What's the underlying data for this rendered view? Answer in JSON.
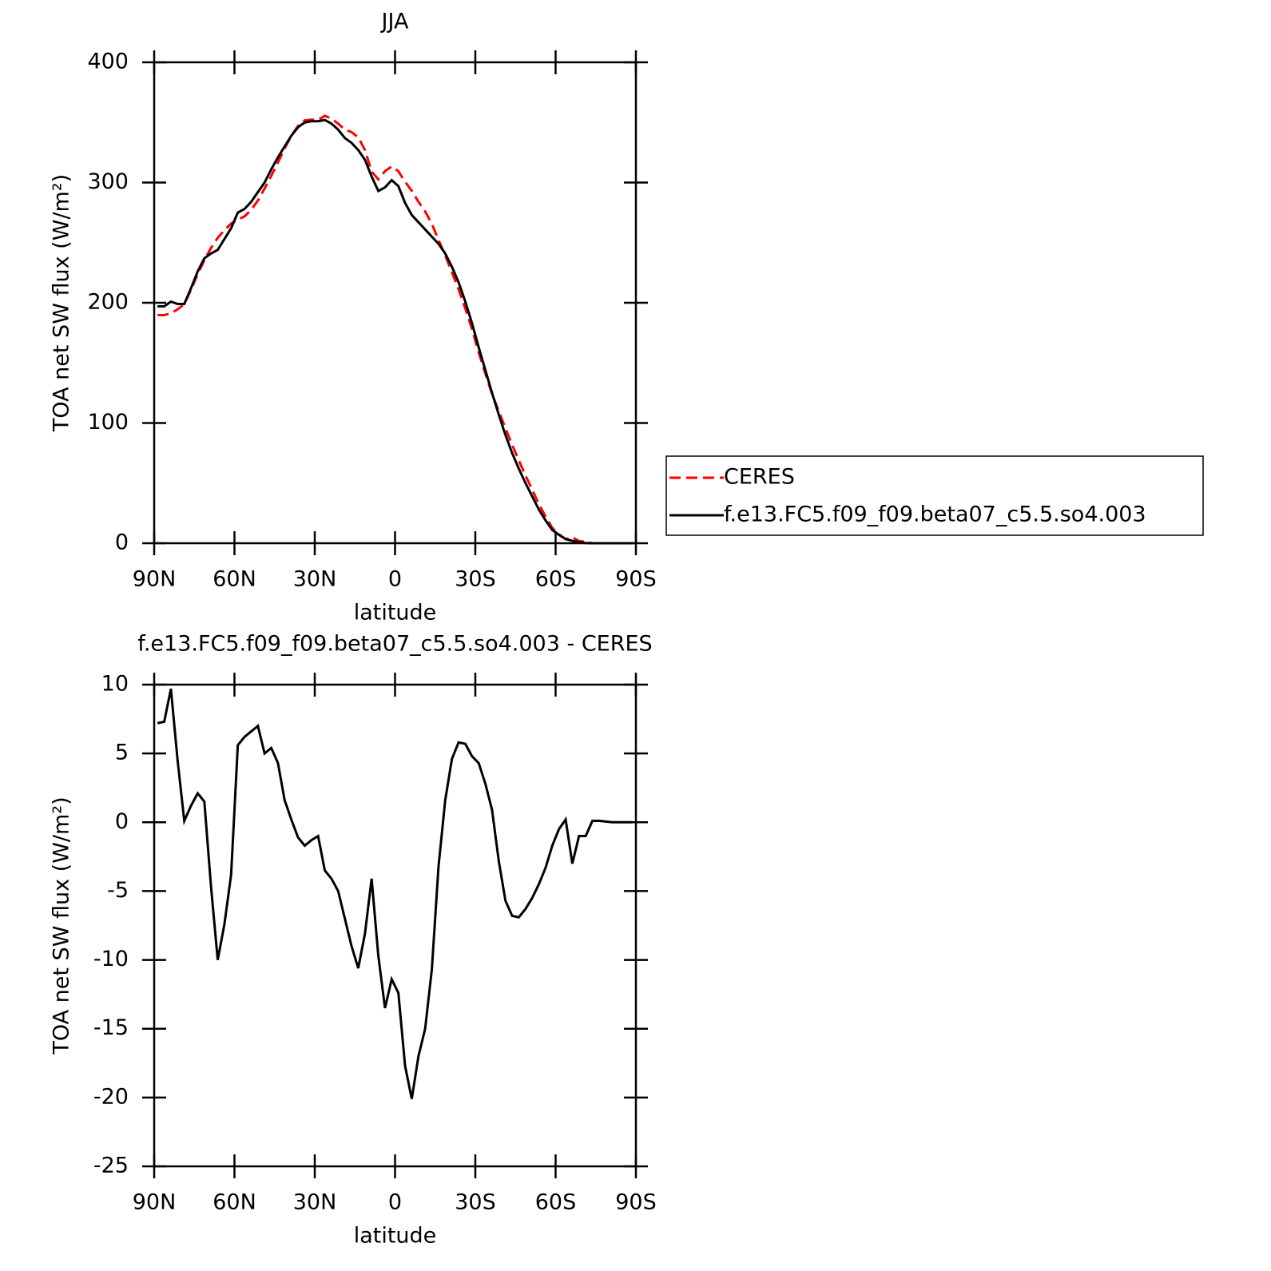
{
  "chart_data": [
    {
      "type": "line",
      "title": "JJA",
      "xlabel": "latitude",
      "ylabel": "TOA net SW flux (W/m²)",
      "x": [
        88.75,
        86.25,
        83.75,
        81.25,
        78.75,
        76.25,
        73.75,
        71.25,
        68.75,
        66.25,
        63.75,
        61.25,
        58.75,
        56.25,
        53.75,
        51.25,
        48.75,
        46.25,
        43.75,
        41.25,
        38.75,
        36.25,
        33.75,
        31.25,
        28.75,
        26.25,
        23.75,
        21.25,
        18.75,
        16.25,
        13.75,
        11.25,
        8.75,
        6.25,
        3.75,
        1.25,
        -1.25,
        -3.75,
        -6.25,
        -8.75,
        -11.25,
        -13.75,
        -16.25,
        -18.75,
        -21.25,
        -23.75,
        -26.25,
        -28.75,
        -31.25,
        -33.75,
        -36.25,
        -38.75,
        -41.25,
        -43.75,
        -46.25,
        -48.75,
        -51.25,
        -53.75,
        -56.25,
        -58.75,
        -61.25,
        -63.75,
        -66.25,
        -68.75,
        -71.25,
        -73.75,
        -76.25,
        -78.75,
        -81.25,
        -83.75,
        -86.25,
        -88.75
      ],
      "xlim": [
        90,
        -90
      ],
      "xticks": [
        {
          "value": 90,
          "label": "90N"
        },
        {
          "value": 60,
          "label": "60N"
        },
        {
          "value": 30,
          "label": "30N"
        },
        0,
        {
          "value": -30,
          "label": "30S"
        },
        {
          "value": -60,
          "label": "60S"
        },
        {
          "value": -90,
          "label": "90S"
        }
      ],
      "ylim": [
        0,
        400
      ],
      "yticks": [
        0,
        100,
        200,
        300,
        400
      ],
      "series": [
        {
          "name": "CERES",
          "color": "#ff0000",
          "dash": true,
          "values": [
            189.8,
            189.7,
            191.3,
            194.5,
            198.9,
            210.8,
            223.9,
            235.5,
            245.7,
            254,
            260.4,
            265.8,
            269.4,
            271.8,
            277.4,
            285,
            295,
            305.6,
            316.7,
            328.4,
            338.8,
            347.1,
            351.7,
            352.3,
            352,
            355.5,
            353.1,
            349,
            344,
            342,
            337.6,
            327.1,
            309.1,
            302.7,
            309.5,
            313.4,
            309.4,
            300.7,
            293.1,
            284,
            276,
            265.7,
            252.2,
            239.4,
            225.4,
            211.2,
            195.3,
            178.2,
            158.7,
            141.2,
            124.1,
            109.8,
            95.7,
            81.8,
            68.9,
            56.3,
            44.5,
            32.5,
            22.3,
            12.7,
            7.5,
            3.3,
            5,
            1.8,
            1.2,
            0,
            0,
            0,
            0,
            0,
            0,
            0
          ]
        },
        {
          "name": "f.e13.FC5.f09_f09.beta07_c5.5.so4.003",
          "color": "#000000",
          "dash": false,
          "values": [
            197,
            197,
            201,
            199,
            199,
            212,
            226,
            237,
            241,
            244,
            253,
            262,
            275,
            278,
            284,
            292,
            300,
            311,
            321,
            330,
            339,
            346,
            350,
            351,
            351,
            352,
            349,
            344,
            337,
            333,
            327,
            319,
            305,
            293,
            296,
            302,
            297,
            283,
            273,
            267,
            261,
            255,
            249,
            241,
            230,
            217,
            201,
            183,
            163,
            144,
            125,
            107,
            90,
            75,
            62,
            50,
            39,
            28,
            19,
            11,
            7,
            3.5,
            2,
            0.8,
            0.2,
            0,
            0,
            0,
            0,
            0,
            0,
            0
          ]
        }
      ]
    },
    {
      "type": "line",
      "title": "f.e13.FC5.f09_f09.beta07_c5.5.so4.003 - CERES",
      "xlabel": "latitude",
      "ylabel": "TOA net SW flux (W/m²)",
      "x": [
        88.75,
        86.25,
        83.75,
        81.25,
        78.75,
        76.25,
        73.75,
        71.25,
        68.75,
        66.25,
        63.75,
        61.25,
        58.75,
        56.25,
        53.75,
        51.25,
        48.75,
        46.25,
        43.75,
        41.25,
        38.75,
        36.25,
        33.75,
        31.25,
        28.75,
        26.25,
        23.75,
        21.25,
        18.75,
        16.25,
        13.75,
        11.25,
        8.75,
        6.25,
        3.75,
        1.25,
        -1.25,
        -3.75,
        -6.25,
        -8.75,
        -11.25,
        -13.75,
        -16.25,
        -18.75,
        -21.25,
        -23.75,
        -26.25,
        -28.75,
        -31.25,
        -33.75,
        -36.25,
        -38.75,
        -41.25,
        -43.75,
        -46.25,
        -48.75,
        -51.25,
        -53.75,
        -56.25,
        -58.75,
        -61.25,
        -63.75,
        -66.25,
        -68.75,
        -71.25,
        -73.75,
        -76.25,
        -78.75,
        -81.25,
        -83.75,
        -86.25,
        -88.75
      ],
      "xlim": [
        90,
        -90
      ],
      "xticks": [
        {
          "value": 90,
          "label": "90N"
        },
        {
          "value": 60,
          "label": "60N"
        },
        {
          "value": 30,
          "label": "30N"
        },
        0,
        {
          "value": -30,
          "label": "30S"
        },
        {
          "value": -60,
          "label": "60S"
        },
        {
          "value": -90,
          "label": "90S"
        }
      ],
      "ylim": [
        -25,
        10
      ],
      "yticks": [
        -25,
        -20,
        -15,
        -10,
        -5,
        0,
        5,
        10
      ],
      "series": [
        {
          "color": "#000000",
          "dash": false,
          "values": [
            7.2,
            7.3,
            9.7,
            4.5,
            0.1,
            1.2,
            2.1,
            1.5,
            -4.7,
            -10,
            -7.4,
            -3.8,
            5.6,
            6.2,
            6.6,
            7,
            5,
            5.4,
            4.3,
            1.6,
            0.2,
            -1.1,
            -1.7,
            -1.3,
            -1,
            -3.5,
            -4.1,
            -5,
            -7,
            -9,
            -10.6,
            -8.1,
            -4.1,
            -9.7,
            -13.5,
            -11.4,
            -12.4,
            -17.7,
            -20.1,
            -17,
            -15,
            -10.7,
            -3.2,
            1.6,
            4.6,
            5.8,
            5.7,
            4.8,
            4.3,
            2.8,
            0.9,
            -2.8,
            -5.7,
            -6.8,
            -6.9,
            -6.3,
            -5.5,
            -4.5,
            -3.3,
            -1.7,
            -0.5,
            0.2,
            -3,
            -1,
            -1,
            0.1,
            0.1,
            0.05,
            0,
            0,
            0,
            0
          ]
        }
      ]
    }
  ]
}
